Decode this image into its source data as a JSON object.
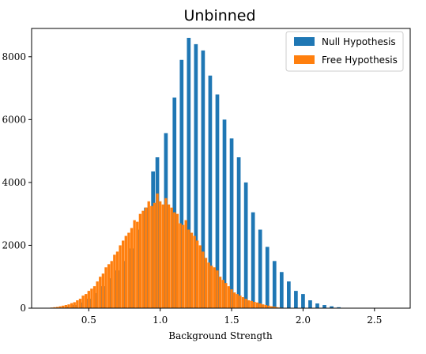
{
  "chart_data": {
    "type": "bar",
    "title": "Unbinned",
    "xlabel": "Background Strength",
    "ylabel": "",
    "xlim": [
      0.1,
      2.75
    ],
    "ylim": [
      0,
      8900
    ],
    "xticks": [
      "0.5",
      "1.0",
      "1.5",
      "2.0",
      "2.5"
    ],
    "yticks": [
      "0",
      "2000",
      "4000",
      "6000",
      "8000"
    ],
    "xtick_values": [
      0.5,
      1.0,
      1.5,
      2.0,
      2.5
    ],
    "ytick_values": [
      0,
      2000,
      4000,
      6000,
      8000
    ],
    "grid": false,
    "legend": {
      "placement": "top-right"
    },
    "series": [
      {
        "name": "Null Hypothesis",
        "color": "#1f77b4",
        "bar_width": 0.026,
        "x": [
          0.35,
          0.4,
          0.45,
          0.5,
          0.55,
          0.6,
          0.65,
          0.7,
          0.75,
          0.8,
          0.85,
          0.9,
          0.95,
          0.98,
          1.04,
          1.1,
          1.15,
          1.2,
          1.25,
          1.3,
          1.35,
          1.4,
          1.45,
          1.5,
          1.55,
          1.6,
          1.65,
          1.7,
          1.75,
          1.8,
          1.85,
          1.9,
          1.95,
          2.0,
          2.05,
          2.1,
          2.15,
          2.2,
          2.25
        ],
        "values": [
          50,
          100,
          180,
          300,
          480,
          700,
          950,
          1200,
          1500,
          1900,
          2500,
          3200,
          4350,
          4800,
          5570,
          6700,
          7900,
          8600,
          8400,
          8200,
          7400,
          6800,
          6000,
          5400,
          4800,
          4000,
          3050,
          2500,
          1950,
          1500,
          1150,
          850,
          550,
          450,
          250,
          150,
          100,
          60,
          30
        ]
      },
      {
        "name": "Free Hypothesis",
        "color": "#ff7f0e",
        "bar_width": 0.0185,
        "x": [
          0.22,
          0.24,
          0.26,
          0.28,
          0.3,
          0.32,
          0.34,
          0.36,
          0.38,
          0.4,
          0.42,
          0.44,
          0.46,
          0.48,
          0.5,
          0.52,
          0.54,
          0.56,
          0.58,
          0.6,
          0.62,
          0.64,
          0.66,
          0.68,
          0.7,
          0.72,
          0.74,
          0.76,
          0.78,
          0.8,
          0.82,
          0.84,
          0.86,
          0.88,
          0.9,
          0.92,
          0.94,
          0.96,
          0.98,
          1.0,
          1.02,
          1.04,
          1.06,
          1.08,
          1.1,
          1.12,
          1.14,
          1.16,
          1.18,
          1.2,
          1.22,
          1.24,
          1.26,
          1.28,
          1.3,
          1.32,
          1.34,
          1.36,
          1.38,
          1.4,
          1.42,
          1.44,
          1.46,
          1.48,
          1.5,
          1.52,
          1.54,
          1.56,
          1.58,
          1.6,
          1.62,
          1.64,
          1.66,
          1.68,
          1.7,
          1.72,
          1.74,
          1.76,
          1.78,
          1.8,
          1.82,
          1.84,
          1.86
        ],
        "values": [
          10,
          20,
          30,
          40,
          60,
          80,
          100,
          120,
          160,
          190,
          250,
          300,
          400,
          450,
          550,
          620,
          700,
          850,
          1000,
          1100,
          1300,
          1400,
          1500,
          1700,
          1800,
          2000,
          2150,
          2300,
          2400,
          2550,
          2800,
          2750,
          3000,
          3100,
          3200,
          3400,
          3250,
          3350,
          3650,
          3400,
          3300,
          3500,
          3300,
          3200,
          3050,
          3000,
          2700,
          2650,
          2800,
          2500,
          2400,
          2300,
          2150,
          2000,
          1800,
          1600,
          1450,
          1350,
          1300,
          1200,
          1000,
          900,
          800,
          700,
          600,
          500,
          450,
          400,
          350,
          300,
          250,
          230,
          200,
          180,
          150,
          120,
          100,
          80,
          60,
          50,
          30,
          20,
          10
        ]
      }
    ]
  }
}
